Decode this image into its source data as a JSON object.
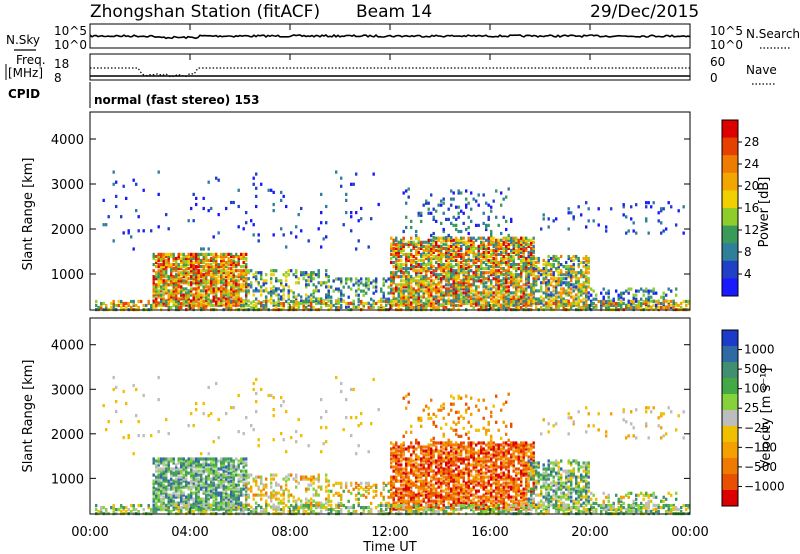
{
  "header": {
    "station": "Zhongshan Station (fitACF)",
    "beam": "Beam 14",
    "date": "29/Dec/2015"
  },
  "labels": {
    "nsky": "N.Sky",
    "nsearch": "N.Search",
    "freq_line1": "Freq.",
    "freq_line2": "[MHz]",
    "nave": "Nave",
    "cpid": "CPID",
    "cpid_text": "normal (fast stereo) 153",
    "nsky_top": "10^5",
    "nsky_bot": "10^0",
    "nsearch_top": "10^5",
    "nsearch_bot": "10^0",
    "freq_top": "18",
    "freq_bot": "8",
    "nave_top": "60",
    "nave_bot": "0"
  },
  "chart_data": [
    {
      "type": "heatmap",
      "name": "power",
      "ylabel": "Slant Range [km]",
      "yticks": [
        "1000",
        "2000",
        "3000",
        "4000"
      ],
      "ylim": [
        200,
        4600
      ],
      "colorbar": {
        "label": "Power [dB]",
        "ticks": [
          "4",
          "8",
          "12",
          "16",
          "20",
          "24",
          "28"
        ],
        "colors": [
          "#1a1aff",
          "#2040c8",
          "#2f7f9a",
          "#3a9a5a",
          "#8fce2a",
          "#f0d000",
          "#f3a500",
          "#ee7c00",
          "#e64000",
          "#dc0000"
        ]
      }
    },
    {
      "type": "heatmap",
      "name": "velocity",
      "ylabel": "Slant Range [km]",
      "yticks": [
        "1000",
        "2000",
        "3000",
        "4000"
      ],
      "ylim": [
        200,
        4600
      ],
      "colorbar": {
        "label": "Velocity [m s⁻¹]",
        "ticks": [
          "1000",
          "500",
          "100",
          "25",
          "−25",
          "−100",
          "−500",
          "−1000"
        ],
        "colors": [
          "#1a3cc8",
          "#2f6aa5",
          "#3f8f70",
          "#43a845",
          "#86d23a",
          "#bdbdbd",
          "#f0c000",
          "#f3a000",
          "#ee7a00",
          "#e85000",
          "#dc0000"
        ]
      }
    }
  ],
  "xaxis": {
    "label": "Time UT",
    "ticks": [
      "00:00",
      "04:00",
      "08:00",
      "12:00",
      "16:00",
      "20:00",
      "00:00"
    ],
    "tick_hours": [
      0,
      4,
      8,
      12,
      16,
      20,
      24
    ]
  }
}
